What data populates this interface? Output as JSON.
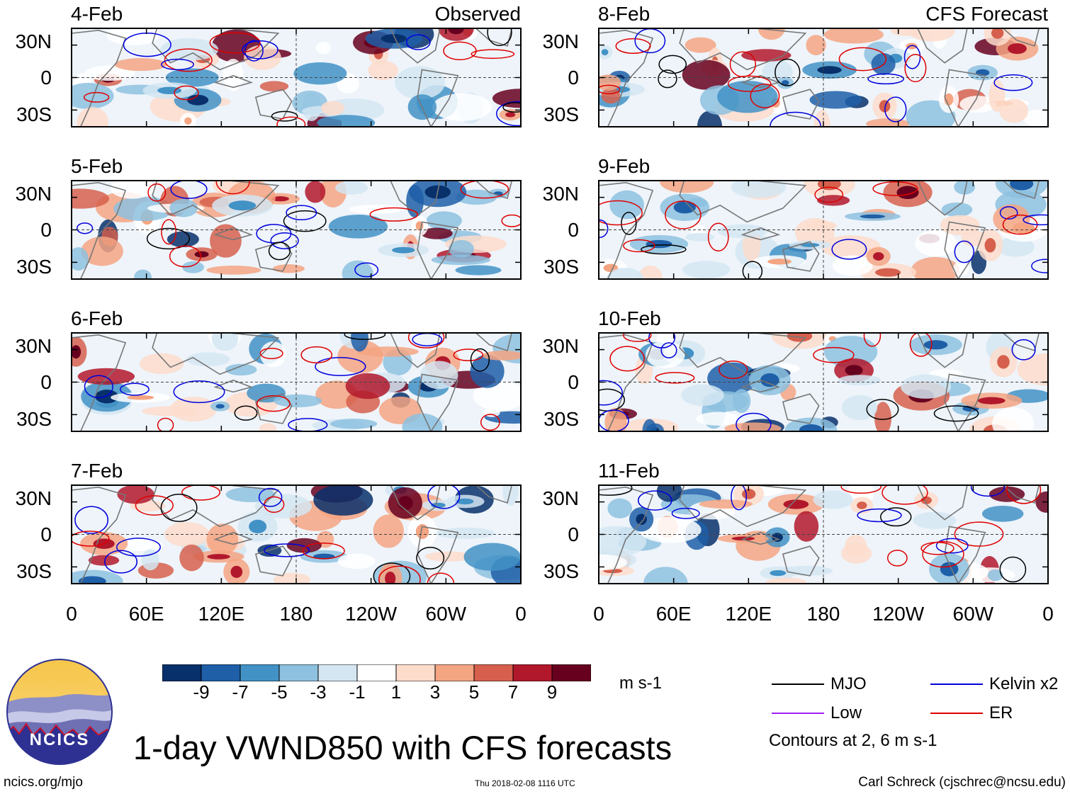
{
  "figure": {
    "title": "1-day VWND850 with CFS forecasts",
    "website": "ncics.org/mjo",
    "timestamp": "Thu 2018-02-08 1116 UTC",
    "author": "Carl Schreck (cjschrec@ncsu.edu)",
    "logo_text": "NCICS"
  },
  "chart_data": {
    "type": "heatmap",
    "variable": "VWND850",
    "units": "m s-1",
    "yticks": [
      "30N",
      "0",
      "30S"
    ],
    "xticks": [
      "0",
      "60E",
      "120E",
      "180",
      "120W",
      "60W",
      "0"
    ],
    "columns": [
      {
        "header": "Observed",
        "panels": [
          "4-Feb",
          "5-Feb",
          "6-Feb",
          "7-Feb"
        ]
      },
      {
        "header": "CFS Forecast",
        "panels": [
          "8-Feb",
          "9-Feb",
          "10-Feb",
          "11-Feb"
        ]
      }
    ],
    "colorbar": {
      "tick_labels": [
        "-9",
        "-7",
        "-5",
        "-3",
        "-1",
        "1",
        "3",
        "5",
        "7",
        "9"
      ],
      "colors": [
        "#08306b",
        "#1f5fa8",
        "#4292c6",
        "#8dc1df",
        "#d4e6f2",
        "#ffffff",
        "#fddccb",
        "#f4a582",
        "#d6604d",
        "#b2182b",
        "#67001f"
      ]
    },
    "legend": {
      "items": [
        {
          "label": "MJO",
          "color": "#000000"
        },
        {
          "label": "Kelvin x2",
          "color": "#0000dd"
        },
        {
          "label": "Low",
          "color": "#a020f0"
        },
        {
          "label": "ER",
          "color": "#e00000"
        }
      ],
      "note": "Contours at 2, 6 m s-1"
    }
  }
}
